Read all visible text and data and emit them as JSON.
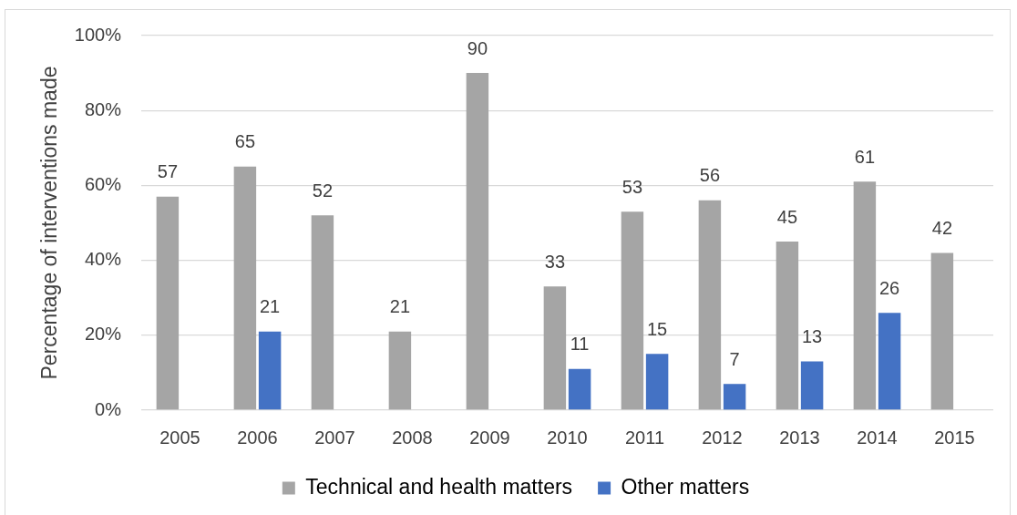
{
  "chart_data": {
    "type": "bar",
    "ylabel": "Percentage of interventions made",
    "categories": [
      "2005",
      "2006",
      "2007",
      "2008",
      "2009",
      "2010",
      "2011",
      "2012",
      "2013",
      "2014",
      "2015"
    ],
    "series": [
      {
        "name": "Technical and health matters",
        "color": "#a5a5a5",
        "values": [
          57,
          65,
          52,
          21,
          90,
          33,
          53,
          56,
          45,
          61,
          42
        ]
      },
      {
        "name": "Other matters",
        "color": "#4472c4",
        "values": [
          null,
          21,
          null,
          null,
          null,
          11,
          15,
          7,
          13,
          26,
          null
        ]
      }
    ],
    "ylim": [
      0,
      100
    ],
    "yticks": [
      {
        "value": 0,
        "label": "0%"
      },
      {
        "value": 20,
        "label": "20%"
      },
      {
        "value": 40,
        "label": "40%"
      },
      {
        "value": 60,
        "label": "60%"
      },
      {
        "value": 80,
        "label": "80%"
      },
      {
        "value": 100,
        "label": "100%"
      }
    ],
    "grid": "y",
    "legend": "bottom",
    "data_labels": true
  }
}
